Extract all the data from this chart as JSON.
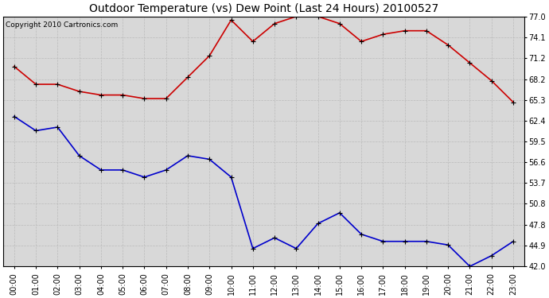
{
  "title": "Outdoor Temperature (vs) Dew Point (Last 24 Hours) 20100527",
  "copyright": "Copyright 2010 Cartronics.com",
  "x_labels": [
    "00:00",
    "01:00",
    "02:00",
    "03:00",
    "04:00",
    "05:00",
    "06:00",
    "07:00",
    "08:00",
    "09:00",
    "10:00",
    "11:00",
    "12:00",
    "13:00",
    "14:00",
    "15:00",
    "16:00",
    "17:00",
    "18:00",
    "19:00",
    "20:00",
    "21:00",
    "22:00",
    "23:00"
  ],
  "temp_data": [
    63.0,
    61.0,
    61.5,
    57.5,
    55.5,
    55.5,
    54.5,
    55.5,
    57.5,
    57.0,
    54.5,
    44.5,
    46.0,
    44.5,
    48.0,
    49.5,
    46.5,
    45.5,
    45.5,
    45.5,
    45.0,
    42.0,
    43.5,
    45.5
  ],
  "dew_data": [
    70.0,
    67.5,
    67.5,
    66.5,
    66.0,
    66.0,
    65.5,
    65.5,
    68.5,
    71.5,
    76.5,
    73.5,
    76.0,
    77.0,
    77.0,
    76.0,
    73.5,
    74.5,
    75.0,
    75.0,
    73.0,
    70.5,
    68.0,
    65.0
  ],
  "ylim": [
    42.0,
    77.0
  ],
  "yticks": [
    42.0,
    44.9,
    47.8,
    50.8,
    53.7,
    56.6,
    59.5,
    62.4,
    65.3,
    68.2,
    71.2,
    74.1,
    77.0
  ],
  "temp_color": "#0000cc",
  "dew_color": "#cc0000",
  "bg_color": "#ffffff",
  "plot_bg_color": "#d8d8d8",
  "grid_color": "#bbbbbb",
  "title_fontsize": 10,
  "axis_fontsize": 7,
  "copyright_fontsize": 6.5
}
